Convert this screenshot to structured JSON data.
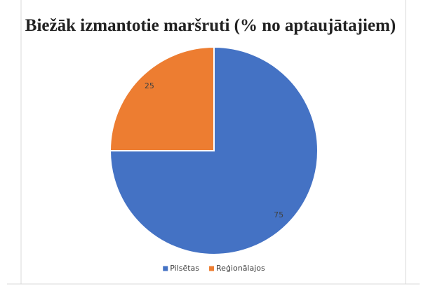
{
  "chart_data": {
    "type": "pie",
    "title": "Biežāk izmantotie maršruti (% no aptaujātajiem)",
    "categories": [
      "Pilsētas",
      "Reģionālajos"
    ],
    "values": [
      75,
      25
    ],
    "colors": [
      "#4472c4",
      "#ed7d31"
    ],
    "legend": "bottom"
  }
}
